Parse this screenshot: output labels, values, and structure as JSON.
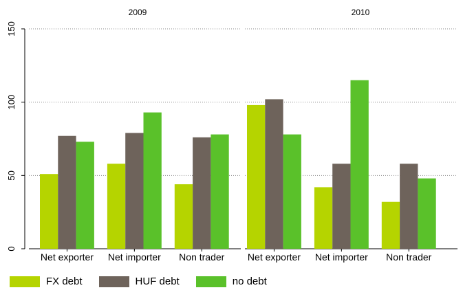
{
  "chart_data": {
    "type": "bar",
    "colors": {
      "FX debt": "#b5d400",
      "HUF debt": "#6e635b",
      "no debt": "#5ac12a",
      "background": "#ffffff",
      "grid": "#888888"
    },
    "ylim": [
      0,
      150
    ],
    "yticks": [
      0,
      50,
      100,
      150
    ],
    "grid": true,
    "legend_position": "bottom-left",
    "series_names": [
      "FX debt",
      "HUF debt",
      "no debt"
    ],
    "panels": [
      {
        "title": "2009",
        "categories": [
          "Net exporter",
          "Net importer",
          "Non trader"
        ],
        "series": [
          {
            "name": "FX debt",
            "values": [
              51,
              58,
              44
            ]
          },
          {
            "name": "HUF debt",
            "values": [
              77,
              79,
              76
            ]
          },
          {
            "name": "no debt",
            "values": [
              73,
              93,
              78
            ]
          }
        ]
      },
      {
        "title": "2010",
        "categories": [
          "Net exporter",
          "Net importer",
          "Non trader"
        ],
        "series": [
          {
            "name": "FX debt",
            "values": [
              98,
              42,
              32
            ]
          },
          {
            "name": "HUF debt",
            "values": [
              102,
              58,
              58
            ]
          },
          {
            "name": "no debt",
            "values": [
              78,
              115,
              48
            ]
          }
        ]
      }
    ]
  }
}
